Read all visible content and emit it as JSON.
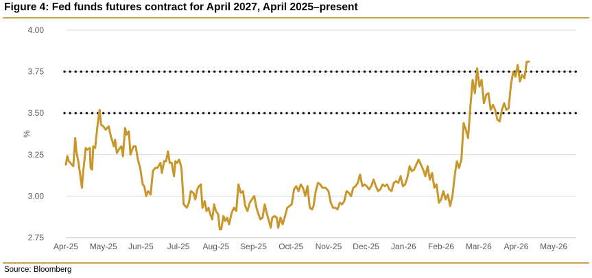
{
  "figure": {
    "title": "Figure 4: Fed funds futures contract for April 2027, April 2025–present",
    "source": "Source: Bloomberg"
  },
  "colors": {
    "line": "#c8962a",
    "dots": "#000000",
    "grid": "#d9d9d9",
    "frame": "#c8a24a"
  },
  "chart_data": {
    "type": "line",
    "title": "",
    "xlabel": "",
    "ylabel": "%",
    "ylim": [
      2.75,
      4.0
    ],
    "xlim": [
      0,
      13.6
    ],
    "grid": "horizontal",
    "x_ticks": [
      {
        "label": "Apr-25",
        "x": 0
      },
      {
        "label": "May-25",
        "x": 1
      },
      {
        "label": "Jun-25",
        "x": 2
      },
      {
        "label": "Jul-25",
        "x": 3
      },
      {
        "label": "Aug-25",
        "x": 4
      },
      {
        "label": "Sep-25",
        "x": 5
      },
      {
        "label": "Oct-25",
        "x": 6
      },
      {
        "label": "Nov-25",
        "x": 7
      },
      {
        "label": "Dec-25",
        "x": 8
      },
      {
        "label": "Jan-26",
        "x": 9
      },
      {
        "label": "Feb-26",
        "x": 10
      },
      {
        "label": "Mar-26",
        "x": 11
      },
      {
        "label": "Apr-26",
        "x": 12
      },
      {
        "label": "May-26",
        "x": 13
      }
    ],
    "y_ticks": [
      "4.00",
      "3.75",
      "3.50",
      "3.25",
      "3.00",
      "2.75"
    ],
    "reference_lines": [
      3.75,
      3.5
    ],
    "series": [
      {
        "name": "",
        "points": [
          [
            0.0,
            3.19
          ],
          [
            0.04,
            3.24
          ],
          [
            0.08,
            3.21
          ],
          [
            0.12,
            3.2
          ],
          [
            0.2,
            3.18
          ],
          [
            0.25,
            3.35
          ],
          [
            0.28,
            3.27
          ],
          [
            0.33,
            3.21
          ],
          [
            0.37,
            3.15
          ],
          [
            0.43,
            3.05
          ],
          [
            0.45,
            3.12
          ],
          [
            0.53,
            3.29
          ],
          [
            0.57,
            3.28
          ],
          [
            0.64,
            3.29
          ],
          [
            0.66,
            3.17
          ],
          [
            0.7,
            3.16
          ],
          [
            0.73,
            3.3
          ],
          [
            0.78,
            3.29
          ],
          [
            0.84,
            3.42
          ],
          [
            0.9,
            3.52
          ],
          [
            0.94,
            3.43
          ],
          [
            1.0,
            3.42
          ],
          [
            1.06,
            3.4
          ],
          [
            1.14,
            3.42
          ],
          [
            1.2,
            3.36
          ],
          [
            1.28,
            3.3
          ],
          [
            1.31,
            3.34
          ],
          [
            1.36,
            3.26
          ],
          [
            1.44,
            3.29
          ],
          [
            1.48,
            3.3
          ],
          [
            1.52,
            3.24
          ],
          [
            1.58,
            3.41
          ],
          [
            1.62,
            3.37
          ],
          [
            1.68,
            3.39
          ],
          [
            1.72,
            3.25
          ],
          [
            1.8,
            3.3
          ],
          [
            1.86,
            3.3
          ],
          [
            1.92,
            3.22
          ],
          [
            1.98,
            3.17
          ],
          [
            2.05,
            3.07
          ],
          [
            2.09,
            3.06
          ],
          [
            2.14,
            3.0
          ],
          [
            2.19,
            3.03
          ],
          [
            2.26,
            3.01
          ],
          [
            2.32,
            3.15
          ],
          [
            2.38,
            3.17
          ],
          [
            2.44,
            3.17
          ],
          [
            2.52,
            3.2
          ],
          [
            2.56,
            3.14
          ],
          [
            2.62,
            3.21
          ],
          [
            2.67,
            3.21
          ],
          [
            2.72,
            3.27
          ],
          [
            2.77,
            3.2
          ],
          [
            2.82,
            3.2
          ],
          [
            2.88,
            3.12
          ],
          [
            2.92,
            3.21
          ],
          [
            2.96,
            3.2
          ],
          [
            3.02,
            3.22
          ],
          [
            3.08,
            3.17
          ],
          [
            3.14,
            2.95
          ],
          [
            3.22,
            2.93
          ],
          [
            3.28,
            2.96
          ],
          [
            3.33,
            3.03
          ],
          [
            3.4,
            3.02
          ],
          [
            3.45,
            2.98
          ],
          [
            3.5,
            3.04
          ],
          [
            3.55,
            3.06
          ],
          [
            3.6,
            3.07
          ],
          [
            3.64,
            2.93
          ],
          [
            3.7,
            2.97
          ],
          [
            3.75,
            2.91
          ],
          [
            3.8,
            2.93
          ],
          [
            3.85,
            2.89
          ],
          [
            3.9,
            2.86
          ],
          [
            3.95,
            2.95
          ],
          [
            4.0,
            2.91
          ],
          [
            4.06,
            2.89
          ],
          [
            4.1,
            2.8
          ],
          [
            4.14,
            2.8
          ],
          [
            4.2,
            2.88
          ],
          [
            4.25,
            2.85
          ],
          [
            4.3,
            2.87
          ],
          [
            4.35,
            2.83
          ],
          [
            4.42,
            2.9
          ],
          [
            4.48,
            2.93
          ],
          [
            4.54,
            2.91
          ],
          [
            4.6,
            3.07
          ],
          [
            4.66,
            3.02
          ],
          [
            4.72,
            3.03
          ],
          [
            4.78,
            2.94
          ],
          [
            4.84,
            2.91
          ],
          [
            4.9,
            2.96
          ],
          [
            4.96,
            2.98
          ],
          [
            5.02,
            3.0
          ],
          [
            5.08,
            2.93
          ],
          [
            5.12,
            2.9
          ],
          [
            5.18,
            2.86
          ],
          [
            5.24,
            2.87
          ],
          [
            5.3,
            2.95
          ],
          [
            5.35,
            2.9
          ],
          [
            5.4,
            2.86
          ],
          [
            5.46,
            2.81
          ],
          [
            5.5,
            2.87
          ],
          [
            5.56,
            2.88
          ],
          [
            5.62,
            2.87
          ],
          [
            5.66,
            2.81
          ],
          [
            5.72,
            2.87
          ],
          [
            5.78,
            2.83
          ],
          [
            5.84,
            2.88
          ],
          [
            5.9,
            2.93
          ],
          [
            5.96,
            2.94
          ],
          [
            6.02,
            2.95
          ],
          [
            6.08,
            3.04
          ],
          [
            6.14,
            3.06
          ],
          [
            6.2,
            3.03
          ],
          [
            6.26,
            3.07
          ],
          [
            6.32,
            3.05
          ],
          [
            6.38,
            3.0
          ],
          [
            6.44,
            3.06
          ],
          [
            6.5,
            2.93
          ],
          [
            6.56,
            2.92
          ],
          [
            6.6,
            2.94
          ],
          [
            6.66,
            3.03
          ],
          [
            6.72,
            3.08
          ],
          [
            6.78,
            3.07
          ],
          [
            6.84,
            3.05
          ],
          [
            6.92,
            3.05
          ],
          [
            7.0,
            3.03
          ],
          [
            7.06,
            2.96
          ],
          [
            7.12,
            2.93
          ],
          [
            7.18,
            2.93
          ],
          [
            7.24,
            2.92
          ],
          [
            7.3,
            2.96
          ],
          [
            7.36,
            2.95
          ],
          [
            7.42,
            2.97
          ],
          [
            7.48,
            3.03
          ],
          [
            7.54,
            3.02
          ],
          [
            7.6,
            3.0
          ],
          [
            7.66,
            3.05
          ],
          [
            7.72,
            3.06
          ],
          [
            7.78,
            3.08
          ],
          [
            7.84,
            3.13
          ],
          [
            7.9,
            3.06
          ],
          [
            7.96,
            3.07
          ],
          [
            8.02,
            3.06
          ],
          [
            8.08,
            3.04
          ],
          [
            8.14,
            3.06
          ],
          [
            8.2,
            3.1
          ],
          [
            8.26,
            3.06
          ],
          [
            8.32,
            3.03
          ],
          [
            8.38,
            3.04
          ],
          [
            8.44,
            3.07
          ],
          [
            8.5,
            3.06
          ],
          [
            8.56,
            3.07
          ],
          [
            8.62,
            3.04
          ],
          [
            8.68,
            3.03
          ],
          [
            8.74,
            3.08
          ],
          [
            8.8,
            3.09
          ],
          [
            8.86,
            3.08
          ],
          [
            8.92,
            3.12
          ],
          [
            8.98,
            3.06
          ],
          [
            9.04,
            3.07
          ],
          [
            9.1,
            3.11
          ],
          [
            9.16,
            3.18
          ],
          [
            9.22,
            3.15
          ],
          [
            9.28,
            3.16
          ],
          [
            9.34,
            3.19
          ],
          [
            9.4,
            3.22
          ],
          [
            9.46,
            3.19
          ],
          [
            9.52,
            3.16
          ],
          [
            9.58,
            3.12
          ],
          [
            9.64,
            3.18
          ],
          [
            9.7,
            3.1
          ],
          [
            9.76,
            3.14
          ],
          [
            9.82,
            3.05
          ],
          [
            9.88,
            3.07
          ],
          [
            9.94,
            2.96
          ],
          [
            10.0,
            2.98
          ],
          [
            10.06,
            3.03
          ],
          [
            10.12,
            2.98
          ],
          [
            10.18,
            3.01
          ],
          [
            10.24,
            2.94
          ],
          [
            10.3,
            3.0
          ],
          [
            10.36,
            3.12
          ],
          [
            10.42,
            3.21
          ],
          [
            10.48,
            3.17
          ],
          [
            10.54,
            3.22
          ],
          [
            10.6,
            3.44
          ],
          [
            10.66,
            3.4
          ],
          [
            10.72,
            3.35
          ],
          [
            10.78,
            3.54
          ],
          [
            10.84,
            3.7
          ],
          [
            10.9,
            3.62
          ],
          [
            10.96,
            3.77
          ],
          [
            11.02,
            3.66
          ],
          [
            11.08,
            3.7
          ],
          [
            11.14,
            3.56
          ],
          [
            11.2,
            3.61
          ],
          [
            11.26,
            3.62
          ],
          [
            11.32,
            3.52
          ],
          [
            11.38,
            3.55
          ],
          [
            11.44,
            3.52
          ],
          [
            11.5,
            3.46
          ],
          [
            11.56,
            3.45
          ],
          [
            11.62,
            3.52
          ],
          [
            11.68,
            3.56
          ],
          [
            11.74,
            3.52
          ],
          [
            11.8,
            3.53
          ],
          [
            11.86,
            3.67
          ],
          [
            11.92,
            3.75
          ],
          [
            11.98,
            3.72
          ],
          [
            12.04,
            3.79
          ],
          [
            12.1,
            3.69
          ],
          [
            12.16,
            3.73
          ],
          [
            12.22,
            3.71
          ],
          [
            12.28,
            3.81
          ],
          [
            12.34,
            3.81
          ]
        ]
      }
    ]
  }
}
